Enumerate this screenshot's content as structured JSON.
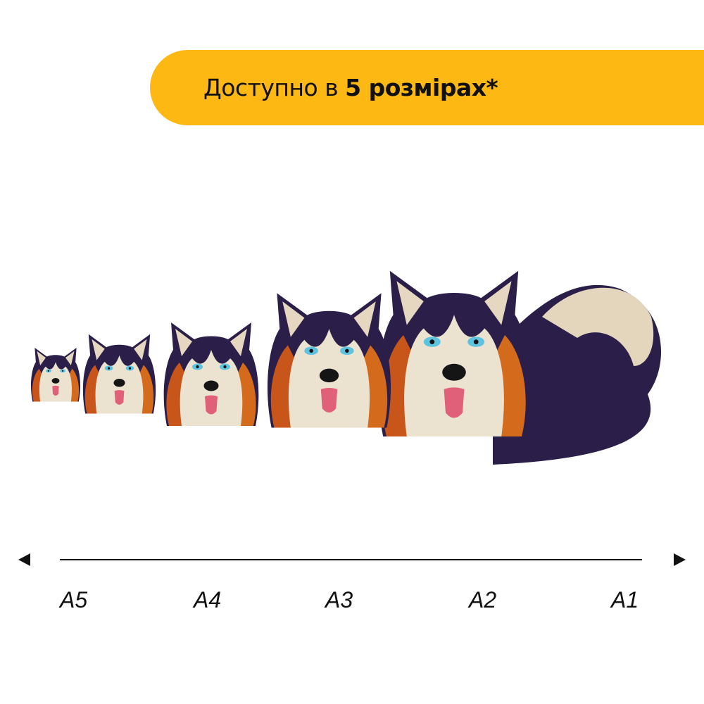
{
  "banner": {
    "text_regular": "Доступно в ",
    "text_bold": "5 розмірах*",
    "color": "#FDB813"
  },
  "image": {
    "subject": "husky-puzzle",
    "count": 5
  },
  "scale": {
    "labels": [
      "A5",
      "A4",
      "A3",
      "A2",
      "A1"
    ],
    "left_arrow_icon": "arrow-left-icon",
    "right_arrow_icon": "arrow-right-icon"
  }
}
